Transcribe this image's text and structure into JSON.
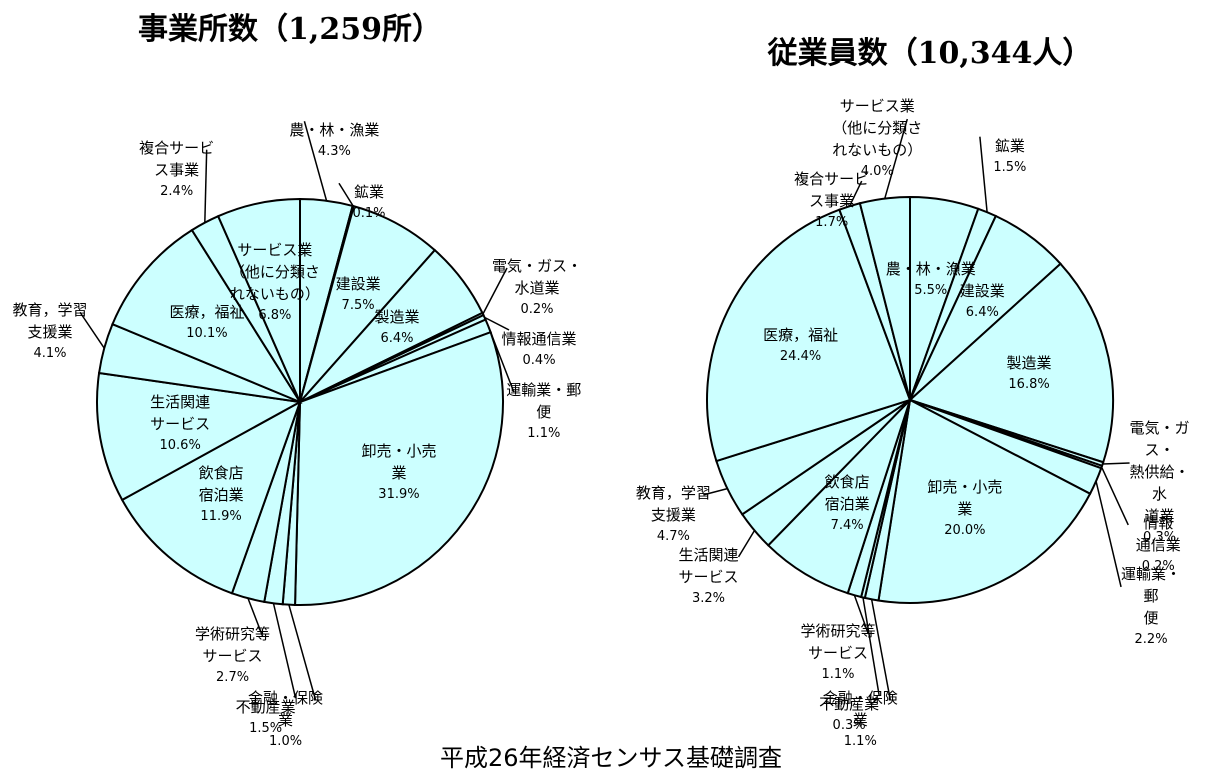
{
  "chart_data": [
    {
      "type": "pie",
      "title": "事業所数（1,259所）",
      "color": "#ccffff",
      "categories": [
        "農・林・漁業",
        "鉱業",
        "建設業",
        "製造業",
        "電気・ガス・\n水道業",
        "情報通信業",
        "運輸業・郵\n便",
        "卸売・小売\n業",
        "金融・保険\n業",
        "不動産業",
        "学術研究等\nサービス",
        "飲食店\n宿泊業",
        "生活関連\nサービス",
        "教育，学習\n支援業",
        "医療，福祉",
        "複合サービ\nス事業",
        "サービス業\n（他に分類さ\nれないもの）"
      ],
      "values": [
        4.3,
        0.1,
        7.5,
        6.4,
        0.2,
        0.4,
        1.1,
        31.9,
        1.0,
        1.5,
        2.7,
        11.9,
        10.6,
        4.1,
        10.1,
        2.4,
        6.8
      ],
      "value_labels": [
        "4.3%",
        "0.1%",
        "7.5%",
        "6.4%",
        "0.2%",
        "0.4%",
        "1.1%",
        "31.9%",
        "1.0%",
        "1.5%",
        "2.7%",
        "11.9%",
        "10.6%",
        "4.1%",
        "10.1%",
        "2.4%",
        "6.8%"
      ]
    },
    {
      "type": "pie",
      "title": "従業員数（10,344人）",
      "color": "#ccffff",
      "categories": [
        "農・林・漁業",
        "鉱業",
        "建設業",
        "製造業",
        "電気・ガス・\n熱供給・水\n道業",
        "情報\n通信業",
        "運輸業・郵\n便",
        "卸売・小売\n業",
        "金融・保険\n業",
        "不動産業",
        "学術研究等\nサービス",
        "飲食店\n宿泊業",
        "生活関連\nサービス",
        "教育，学習\n支援業",
        "医療，福祉",
        "複合サービ\nス事業",
        "サービス業\n（他に分類さ\nれないもの）"
      ],
      "values": [
        5.5,
        1.5,
        6.4,
        16.8,
        0.3,
        0.2,
        2.2,
        20.0,
        1.1,
        0.3,
        1.1,
        7.4,
        3.2,
        4.7,
        24.4,
        1.7,
        4.0
      ],
      "value_labels": [
        "5.5%",
        "1.5%",
        "6.4%",
        "16.8%",
        "0.3%",
        "0.2%",
        "2.2%",
        "20.0%",
        "1.1%",
        "0.3%",
        "1.1%",
        "7.4%",
        "3.2%",
        "4.7%",
        "24.4%",
        "1.7%",
        "4.0%"
      ]
    }
  ],
  "footer": "平成26年経済センサス基礎調査"
}
